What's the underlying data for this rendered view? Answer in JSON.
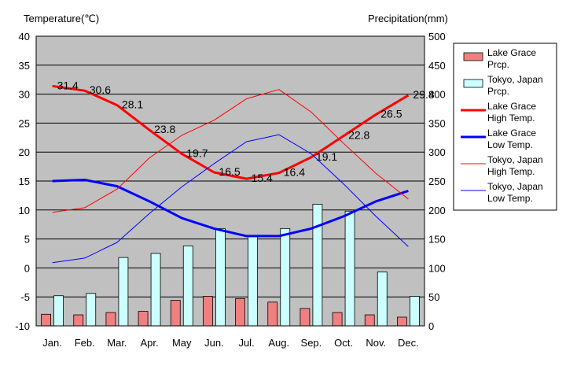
{
  "chart_data": {
    "type": "bar+line",
    "title": "",
    "y_left_label": "Temperature(℃)",
    "y_right_label": "Precipitation(mm)",
    "ylim_left": [
      -10,
      40
    ],
    "ylim_right": [
      0,
      500
    ],
    "y_left_ticks": [
      "40",
      "35",
      "30",
      "25",
      "20",
      "15",
      "10",
      "5",
      "0",
      "-5",
      "-10"
    ],
    "y_right_ticks": [
      "500",
      "450",
      "400",
      "350",
      "300",
      "250",
      "200",
      "150",
      "100",
      "50",
      "0"
    ],
    "categories": [
      "Jan.",
      "Feb.",
      "Mar.",
      "Apr.",
      "May",
      "Jun.",
      "Jul.",
      "Aug.",
      "Sep.",
      "Oct.",
      "Nov.",
      "Dec."
    ],
    "grid": true,
    "legend_position": "right",
    "bar_series": [
      {
        "name": "Lake Grace Prcp.",
        "legend_lines": [
          "Lake Grace",
          "Prcp."
        ],
        "color": "#f08080",
        "values": [
          20,
          19,
          23,
          25,
          44,
          51,
          47,
          41,
          30,
          23,
          19,
          15
        ]
      },
      {
        "name": "Tokyo, Japan Prcp.",
        "legend_lines": [
          "Tokyo, Japan",
          "Prcp."
        ],
        "color": "#ccffff",
        "values": [
          52,
          56,
          118,
          125,
          138,
          168,
          154,
          168,
          210,
          198,
          93,
          51
        ]
      }
    ],
    "line_series": [
      {
        "name": "Lake Grace High Temp.",
        "legend_lines": [
          "Lake Grace",
          "High Temp."
        ],
        "color": "#ff0000",
        "width": 3,
        "values": [
          31.4,
          30.6,
          28.1,
          23.8,
          19.7,
          16.5,
          15.4,
          16.4,
          19.1,
          22.8,
          26.5,
          29.8
        ],
        "labels": [
          "31.4",
          "30.6",
          "28.1",
          "23.8",
          "19.7",
          "16.5",
          "15.4",
          "16.4",
          "19.1",
          "22.8",
          "26.5",
          "29.8"
        ]
      },
      {
        "name": "Lake Grace Low Temp.",
        "legend_lines": [
          "Lake Grace",
          "Low Temp."
        ],
        "color": "#0000ff",
        "width": 3,
        "values": [
          15.0,
          15.2,
          14.1,
          11.5,
          8.6,
          6.8,
          5.5,
          5.5,
          6.8,
          8.9,
          11.5,
          13.3
        ]
      },
      {
        "name": "Tokyo, Japan High Temp.",
        "legend_lines": [
          "Tokyo, Japan",
          "High Temp."
        ],
        "color": "#ff0000",
        "width": 1,
        "values": [
          9.6,
          10.4,
          13.6,
          19.0,
          22.9,
          25.5,
          29.2,
          30.8,
          26.9,
          21.5,
          16.3,
          11.9
        ]
      },
      {
        "name": "Tokyo, Japan Low Temp.",
        "legend_lines": [
          "Tokyo, Japan",
          "Low Temp."
        ],
        "color": "#0000ff",
        "width": 1,
        "values": [
          0.9,
          1.7,
          4.4,
          9.4,
          14.0,
          18.0,
          21.8,
          23.0,
          19.7,
          14.5,
          8.9,
          3.7
        ]
      }
    ],
    "colors": {
      "plot_background": "#c0c0c0",
      "grid": "#000000",
      "label_text": "#000000"
    }
  }
}
